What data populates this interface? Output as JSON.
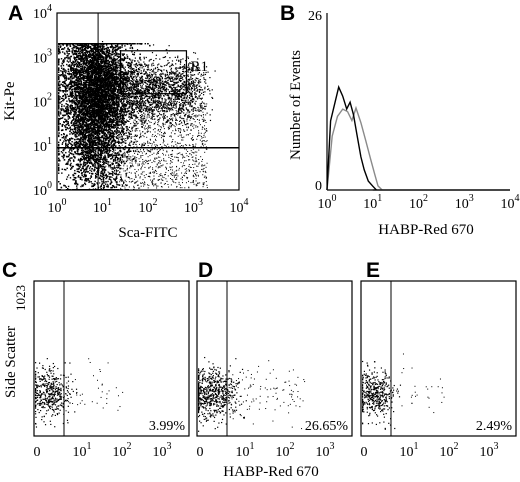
{
  "chart_data": [
    {
      "panel": "A",
      "type": "scatter",
      "xlabel": "Sca-FITC",
      "ylabel": "Kit-Pe",
      "scale": "log",
      "xlim": [
        1,
        10000
      ],
      "ylim": [
        1,
        10000
      ],
      "xticks": [
        {
          "base": "10",
          "exp": "0"
        },
        {
          "base": "10",
          "exp": "1"
        },
        {
          "base": "10",
          "exp": "2"
        },
        {
          "base": "10",
          "exp": "3"
        },
        {
          "base": "10",
          "exp": "4"
        }
      ],
      "yticks": [
        {
          "base": "10",
          "exp": "0"
        },
        {
          "base": "10",
          "exp": "1"
        },
        {
          "base": "10",
          "exp": "2"
        },
        {
          "base": "10",
          "exp": "3"
        },
        {
          "base": "10",
          "exp": "4"
        }
      ],
      "vline_x": 8,
      "hline_y": 9,
      "gate": {
        "label": "R1",
        "x": [
          25,
          700
        ],
        "y": [
          150,
          1400
        ]
      }
    },
    {
      "panel": "B",
      "type": "line",
      "xlabel": "HABP-Red 670",
      "ylabel": "Number of Events",
      "scale": "log-x",
      "xlim": [
        1,
        10000
      ],
      "ylim": [
        0,
        26
      ],
      "yticks": [
        "0",
        "26"
      ],
      "xticks": [
        {
          "base": "10",
          "exp": "0"
        },
        {
          "base": "10",
          "exp": "1"
        },
        {
          "base": "10",
          "exp": "2"
        },
        {
          "base": "10",
          "exp": "3"
        },
        {
          "base": "10",
          "exp": "4"
        }
      ],
      "series": [
        {
          "color": "#000000",
          "x": [
            1,
            1.2,
            1.5,
            1.8,
            2.2,
            2.7,
            3.2,
            3.8,
            4.5,
            5.5,
            6.5,
            8,
            10,
            12
          ],
          "values": [
            0,
            10,
            13,
            15,
            14,
            12,
            13,
            11,
            8,
            5,
            3,
            1.5,
            0.4,
            0
          ]
        },
        {
          "color": "#8a8a8a",
          "x": [
            1,
            1.3,
            1.7,
            2.2,
            2.8,
            3.5,
            4.3,
            5.5,
            7,
            9,
            11,
            13,
            16
          ],
          "values": [
            0,
            8,
            11,
            12,
            11.5,
            10,
            12,
            10,
            7.5,
            4.5,
            2.2,
            0.8,
            0
          ]
        }
      ]
    },
    {
      "panel": "C",
      "type": "scatter",
      "percent": "3.99%",
      "ylabel": "Side Scatter",
      "xticks": [
        {
          "base": "0",
          "exp": ""
        },
        {
          "base": "10",
          "exp": "1"
        },
        {
          "base": "10",
          "exp": "2"
        },
        {
          "base": "10",
          "exp": "3"
        }
      ],
      "ymax_label": "1023",
      "gate_x": 6.5
    },
    {
      "panel": "D",
      "type": "scatter",
      "percent": "26.65%",
      "xlabel": "HABP-Red 670",
      "xticks": [
        {
          "base": "0",
          "exp": ""
        },
        {
          "base": "10",
          "exp": "1"
        },
        {
          "base": "10",
          "exp": "2"
        },
        {
          "base": "10",
          "exp": "3"
        }
      ],
      "gate_x": 6.5
    },
    {
      "panel": "E",
      "type": "scatter",
      "percent": "2.49%",
      "xticks": [
        {
          "base": "0",
          "exp": ""
        },
        {
          "base": "10",
          "exp": "1"
        },
        {
          "base": "10",
          "exp": "2"
        },
        {
          "base": "10",
          "exp": "3"
        }
      ],
      "gate_x": 6.5
    }
  ]
}
